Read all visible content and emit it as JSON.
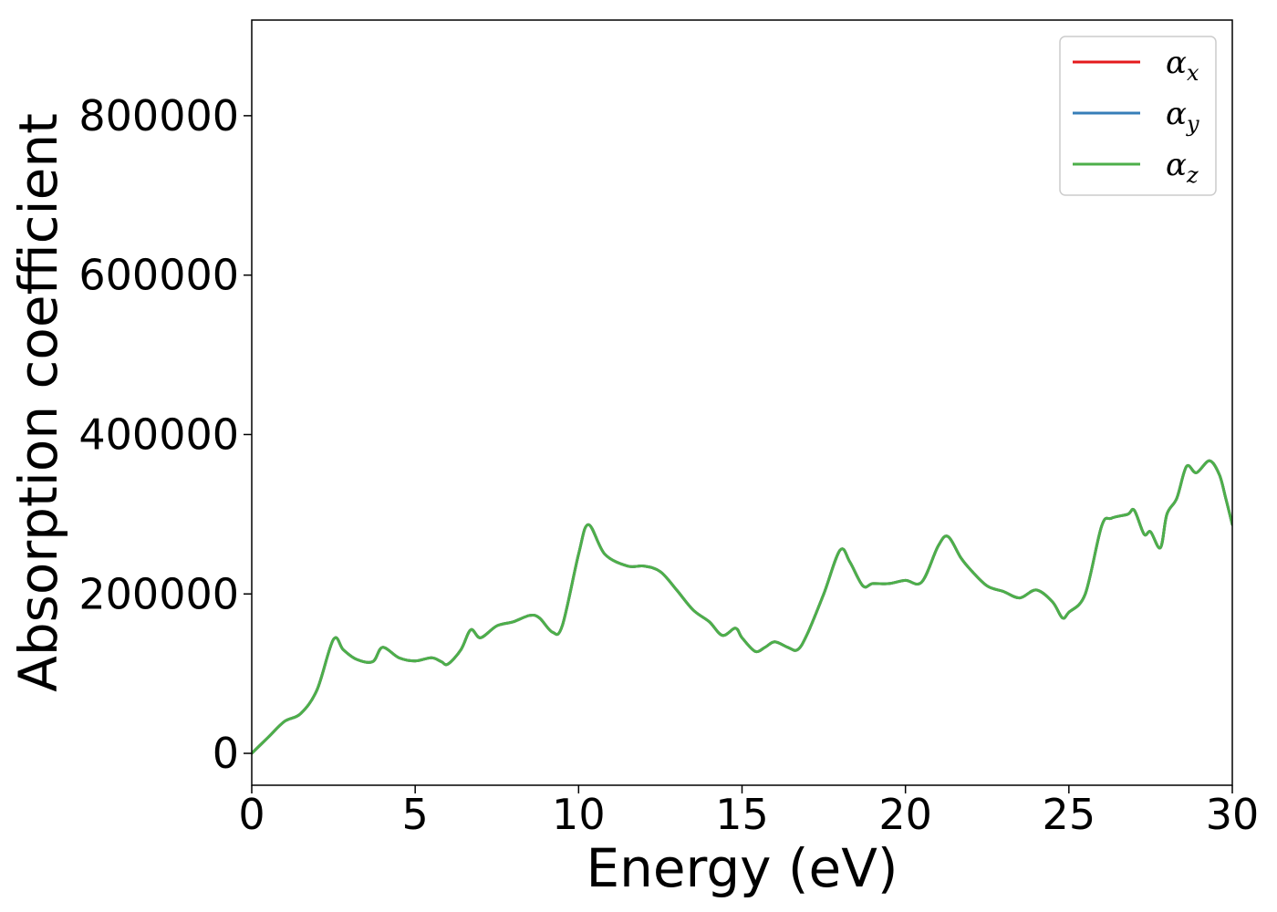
{
  "chart_data": {
    "type": "line",
    "title": "",
    "xlabel": "Energy (eV)",
    "ylabel": "Absorption coefficient",
    "xlim": [
      0,
      30
    ],
    "ylim": [
      -40000,
      920000
    ],
    "xticks": [
      0,
      5,
      10,
      15,
      20,
      25,
      30
    ],
    "xtick_labels": [
      "0",
      "5",
      "10",
      "15",
      "20",
      "25",
      "30"
    ],
    "yticks": [
      0,
      200000,
      400000,
      600000,
      800000
    ],
    "ytick_labels": [
      "0",
      "200000",
      "400000",
      "600000",
      "800000"
    ],
    "grid": false,
    "legend_position": "top-right",
    "x": [
      0,
      0.5,
      1.0,
      1.5,
      2.0,
      2.5,
      2.8,
      3.2,
      3.7,
      4.0,
      4.5,
      5.0,
      5.5,
      5.8,
      6.0,
      6.4,
      6.7,
      7.0,
      7.5,
      8.0,
      8.5,
      8.8,
      9.2,
      9.5,
      10.0,
      10.3,
      10.8,
      11.5,
      12.0,
      12.5,
      13.0,
      13.5,
      14.0,
      14.4,
      14.8,
      15.0,
      15.4,
      15.7,
      16.0,
      16.4,
      16.7,
      17.0,
      17.5,
      18.0,
      18.3,
      18.7,
      19.0,
      19.5,
      20.0,
      20.5,
      21.0,
      21.3,
      21.7,
      22.0,
      22.5,
      23.0,
      23.5,
      24.0,
      24.5,
      24.8,
      25.0,
      25.5,
      26.0,
      26.3,
      26.8,
      27.0,
      27.3,
      27.5,
      27.8,
      28.0,
      28.3,
      28.6,
      28.9,
      29.3,
      29.6,
      29.8,
      30.0
    ],
    "series": [
      {
        "name": "α_x",
        "name_base": "α",
        "name_sub": "x",
        "color": "#e41a1c",
        "values": [
          0,
          20000,
          40000,
          50000,
          80000,
          143000,
          130000,
          118000,
          115000,
          133000,
          120000,
          116000,
          120000,
          115000,
          112000,
          130000,
          155000,
          145000,
          160000,
          165000,
          173000,
          170000,
          152000,
          160000,
          250000,
          287000,
          250000,
          235000,
          235000,
          228000,
          205000,
          180000,
          165000,
          148000,
          157000,
          145000,
          128000,
          133000,
          140000,
          133000,
          130000,
          150000,
          200000,
          255000,
          240000,
          210000,
          213000,
          213000,
          217000,
          215000,
          260000,
          272000,
          245000,
          230000,
          210000,
          203000,
          195000,
          205000,
          190000,
          170000,
          177000,
          200000,
          285000,
          295000,
          300000,
          305000,
          275000,
          278000,
          258000,
          300000,
          320000,
          360000,
          352000,
          367000,
          350000,
          320000,
          287000
        ]
      },
      {
        "name": "α_y",
        "name_base": "α",
        "name_sub": "y",
        "color": "#377eb8",
        "values": [
          0,
          20000,
          40000,
          50000,
          80000,
          143000,
          130000,
          118000,
          115000,
          133000,
          120000,
          116000,
          120000,
          115000,
          112000,
          130000,
          155000,
          145000,
          160000,
          165000,
          173000,
          170000,
          152000,
          160000,
          250000,
          287000,
          250000,
          235000,
          235000,
          228000,
          205000,
          180000,
          165000,
          148000,
          157000,
          145000,
          128000,
          133000,
          140000,
          133000,
          130000,
          150000,
          200000,
          255000,
          240000,
          210000,
          213000,
          213000,
          217000,
          215000,
          260000,
          272000,
          245000,
          230000,
          210000,
          203000,
          195000,
          205000,
          190000,
          170000,
          177000,
          200000,
          285000,
          295000,
          300000,
          305000,
          275000,
          278000,
          258000,
          300000,
          320000,
          360000,
          352000,
          367000,
          350000,
          320000,
          287000
        ]
      },
      {
        "name": "α_z",
        "name_base": "α",
        "name_sub": "z",
        "color": "#4daf4a",
        "values": [
          0,
          20000,
          40000,
          50000,
          80000,
          143000,
          130000,
          118000,
          115000,
          133000,
          120000,
          116000,
          120000,
          115000,
          112000,
          130000,
          155000,
          145000,
          160000,
          165000,
          173000,
          170000,
          152000,
          160000,
          250000,
          287000,
          250000,
          235000,
          235000,
          228000,
          205000,
          180000,
          165000,
          148000,
          157000,
          145000,
          128000,
          133000,
          140000,
          133000,
          130000,
          150000,
          200000,
          255000,
          240000,
          210000,
          213000,
          213000,
          217000,
          215000,
          260000,
          272000,
          245000,
          230000,
          210000,
          203000,
          195000,
          205000,
          190000,
          170000,
          177000,
          200000,
          285000,
          295000,
          300000,
          305000,
          275000,
          278000,
          258000,
          300000,
          320000,
          360000,
          352000,
          367000,
          350000,
          320000,
          287000
        ]
      }
    ]
  }
}
